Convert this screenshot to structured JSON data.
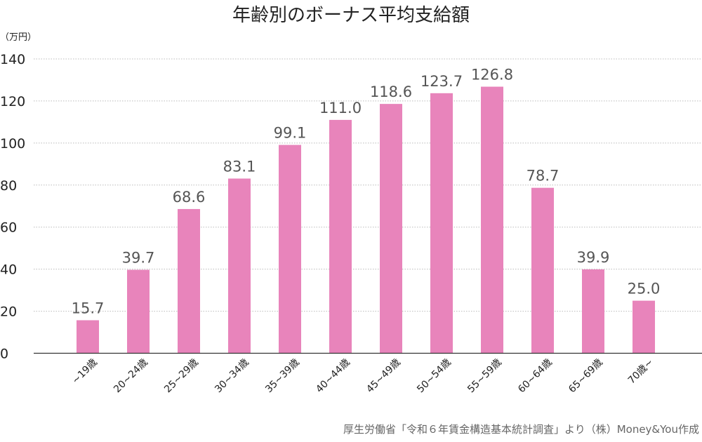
{
  "chart_data": {
    "type": "bar",
    "title": "年齢別のボーナス平均支給額",
    "ylabel": "（万円）",
    "xlabel": "",
    "categories": [
      "~19歳",
      "20~24歳",
      "25~29歳",
      "30~34歳",
      "35~39歳",
      "40~44歳",
      "45~49歳",
      "50~54歳",
      "55~59歳",
      "60~64歳",
      "65~69歳",
      "70歳~"
    ],
    "values": [
      15.7,
      39.7,
      68.6,
      83.1,
      99.1,
      111.0,
      118.6,
      123.7,
      126.8,
      78.7,
      39.9,
      25.0
    ],
    "value_labels": [
      "15.7",
      "39.7",
      "68.6",
      "83.1",
      "99.1",
      "111.0",
      "118.6",
      "123.7",
      "126.8",
      "78.7",
      "39.9",
      "25.0"
    ],
    "ylim": [
      0,
      140
    ],
    "yticks": [
      "0",
      "20",
      "40",
      "60",
      "80",
      "100",
      "120",
      "140"
    ],
    "grid": true,
    "bar_color": "#e884bb",
    "source": "厚生労働省「令和６年賃金構造基本統計調査」より（株）Money&You作成"
  }
}
